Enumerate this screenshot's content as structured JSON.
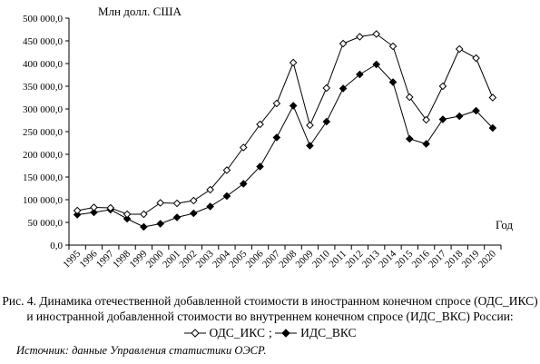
{
  "chart_data": {
    "type": "line",
    "ylabel": "Млн долл. США",
    "xlabel": "Год",
    "ylim": [
      0,
      500000
    ],
    "y_ticks": [
      "0,0",
      "50 000,0",
      "100 000,0",
      "150 000,0",
      "200 000,0",
      "250 000,0",
      "300 000,0",
      "350 000,0",
      "400 000,0",
      "450 000,0",
      "500 000,0"
    ],
    "categories": [
      "1995",
      "1996",
      "1997",
      "1998",
      "1999",
      "2000",
      "2001",
      "2002",
      "2003",
      "2004",
      "2005",
      "2006",
      "2007",
      "2008",
      "2009",
      "2010",
      "2011",
      "2012",
      "2013",
      "2014",
      "2015",
      "2016",
      "2017",
      "2018",
      "2019",
      "2020"
    ],
    "grid": false,
    "series": [
      {
        "name": "ОДС_ИКС",
        "marker": "open-diamond",
        "values": [
          76000,
          83000,
          82000,
          68000,
          68000,
          93000,
          92000,
          98000,
          122000,
          165000,
          215000,
          266000,
          312000,
          402000,
          264000,
          346000,
          444000,
          459000,
          465000,
          438000,
          326000,
          276000,
          350000,
          432000,
          412000,
          325000
        ]
      },
      {
        "name": "ИДС_ВКС",
        "marker": "filled-diamond",
        "values": [
          67000,
          72000,
          78000,
          58000,
          40000,
          47000,
          61000,
          70000,
          85000,
          108000,
          135000,
          173000,
          237000,
          307000,
          219000,
          272000,
          345000,
          376000,
          398000,
          359000,
          234000,
          223000,
          277000,
          284000,
          296000,
          258000
        ]
      }
    ]
  },
  "caption": {
    "line1": "Рис. 4. Динамика отечественной добавленной стоимости в иностранном конечном спросе (ОДС_ИКС)",
    "line2": "и иностранной добавленной стоимости во внутреннем конечном спросе (ИДС_ВКС) России:",
    "legend_sep": ";"
  },
  "source": "Источник: данные Управления статистики ОЭСР."
}
